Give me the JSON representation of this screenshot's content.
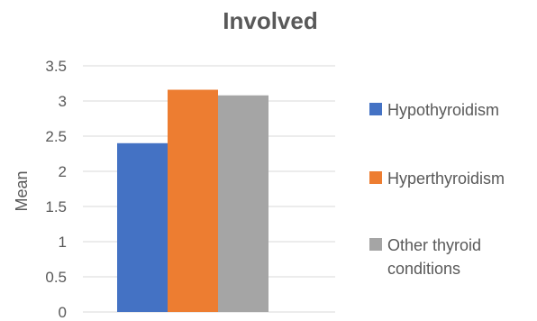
{
  "chart_data": {
    "type": "bar",
    "title": "Involved",
    "ylabel": "Mean",
    "xlabel": "",
    "ylim": [
      0,
      3.5
    ],
    "yticks": [
      "0",
      "0.5",
      "1",
      "1.5",
      "2",
      "2.5",
      "3",
      "3.5"
    ],
    "grid": true,
    "legend_position": "right",
    "categories": [
      ""
    ],
    "series": [
      {
        "name": "Hypothyroidism",
        "values": [
          2.4
        ],
        "color": "#4472C4"
      },
      {
        "name": "Hyperthyroidism",
        "values": [
          3.16
        ],
        "color": "#ED7D31"
      },
      {
        "name": "Other thyroid conditions",
        "values": [
          3.08
        ],
        "color": "#A5A5A5"
      }
    ]
  }
}
